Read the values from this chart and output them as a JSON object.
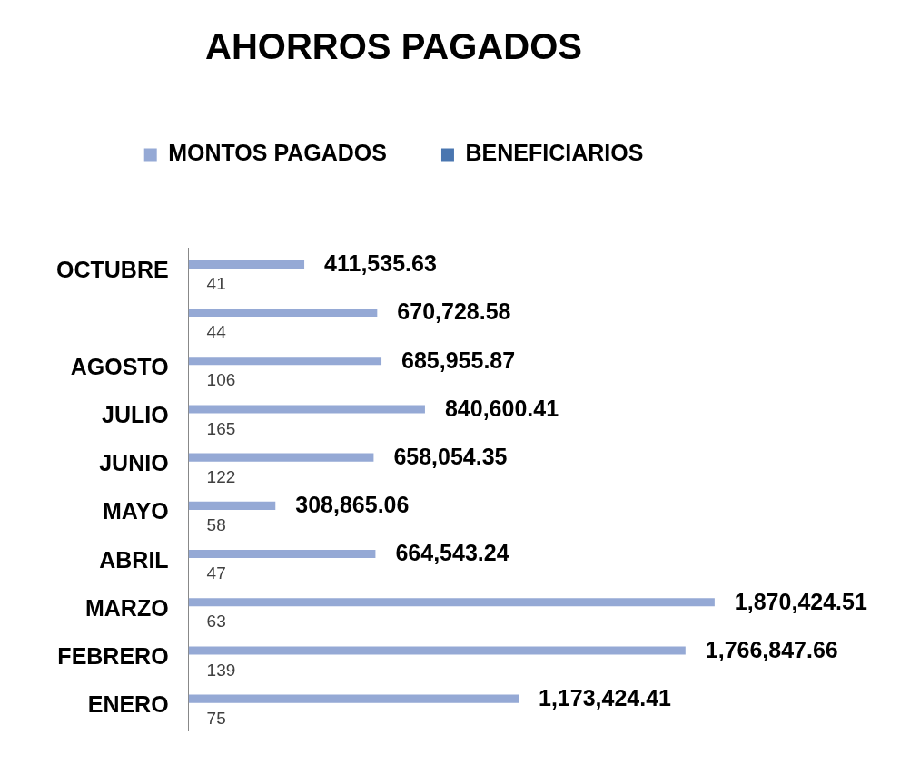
{
  "chart_data": {
    "type": "bar",
    "orientation": "horizontal",
    "title": "AHORROS PAGADOS",
    "legend": "top",
    "categories": [
      "OCTUBRE",
      null,
      "AGOSTO",
      "JULIO",
      "JUNIO",
      "MAYO",
      "ABRIL",
      "MARZO",
      "FEBRERO",
      "ENERO"
    ],
    "series": [
      {
        "name": "MONTOS PAGADOS",
        "color": "#95a9d5",
        "values": [
          411535.63,
          670728.58,
          685955.87,
          840600.41,
          658054.35,
          308865.06,
          664543.24,
          1870424.51,
          1766847.66,
          1173424.41
        ],
        "value_labels": [
          "411,535.63",
          "670,728.58",
          "685,955.87",
          "840,600.41",
          "658,054.35",
          "308,865.06",
          "664,543.24",
          "1,870,424.51",
          "1,766,847.66",
          "1,173,424.41"
        ]
      },
      {
        "name": "BENEFICIARIOS",
        "color": "#4a76b0",
        "values": [
          41,
          44,
          106,
          165,
          122,
          58,
          47,
          63,
          139,
          75
        ],
        "value_labels": [
          "41",
          "44",
          "106",
          "165",
          "122",
          "58",
          "47",
          "63",
          "139",
          "75"
        ]
      }
    ],
    "grid": false
  }
}
